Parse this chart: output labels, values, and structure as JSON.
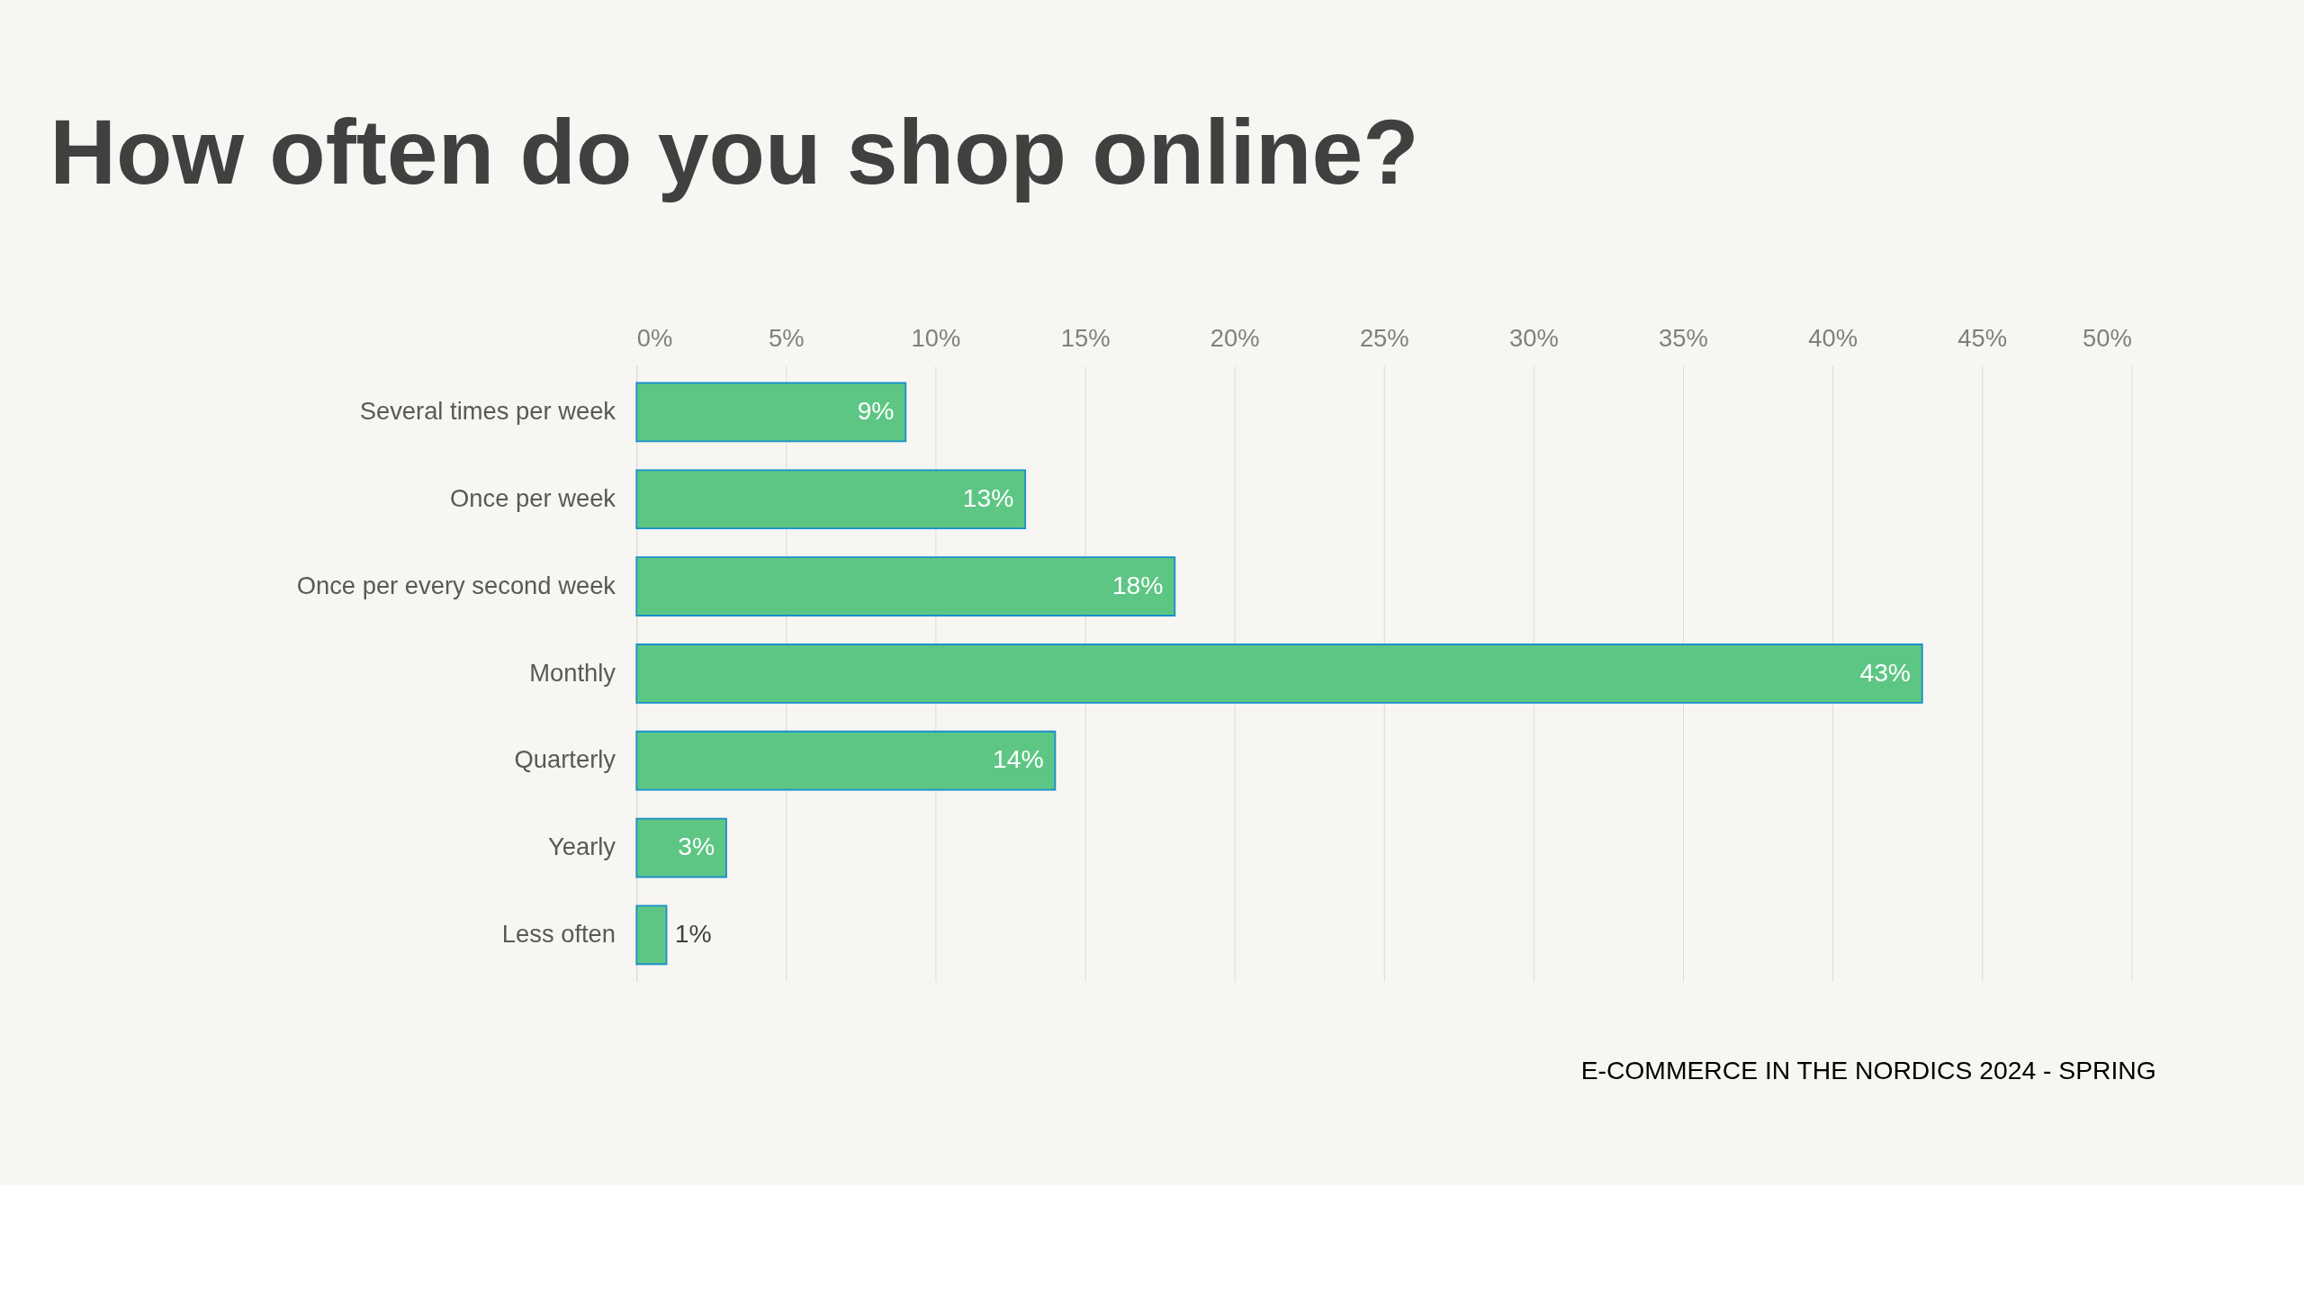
{
  "chart_data": {
    "type": "bar",
    "orientation": "horizontal",
    "title": "How often do you shop online?",
    "categories": [
      "Several times per week",
      "Once per week",
      "Once per every second week",
      "Monthly",
      "Quarterly",
      "Yearly",
      "Less often"
    ],
    "values": [
      9,
      13,
      18,
      43,
      14,
      3,
      1
    ],
    "value_labels": [
      "9%",
      "13%",
      "18%",
      "43%",
      "14%",
      "3%",
      "1%"
    ],
    "color": "#5ec684",
    "xlim": [
      0,
      50
    ],
    "xticks": [
      {
        "value": 0,
        "label": "0%"
      },
      {
        "value": 5,
        "label": "5%"
      },
      {
        "value": 10,
        "label": "10%"
      },
      {
        "value": 15,
        "label": "15%"
      },
      {
        "value": 20,
        "label": "20%"
      },
      {
        "value": 25,
        "label": "25%"
      },
      {
        "value": 30,
        "label": "30%"
      },
      {
        "value": 35,
        "label": "35%"
      },
      {
        "value": 40,
        "label": "40%"
      },
      {
        "value": 45,
        "label": "45%"
      },
      {
        "value": 50,
        "label": "50%"
      }
    ],
    "grid": "x",
    "annotations": [
      "E-COMMERCE IN THE NORDICS 2024 - SPRING"
    ]
  }
}
